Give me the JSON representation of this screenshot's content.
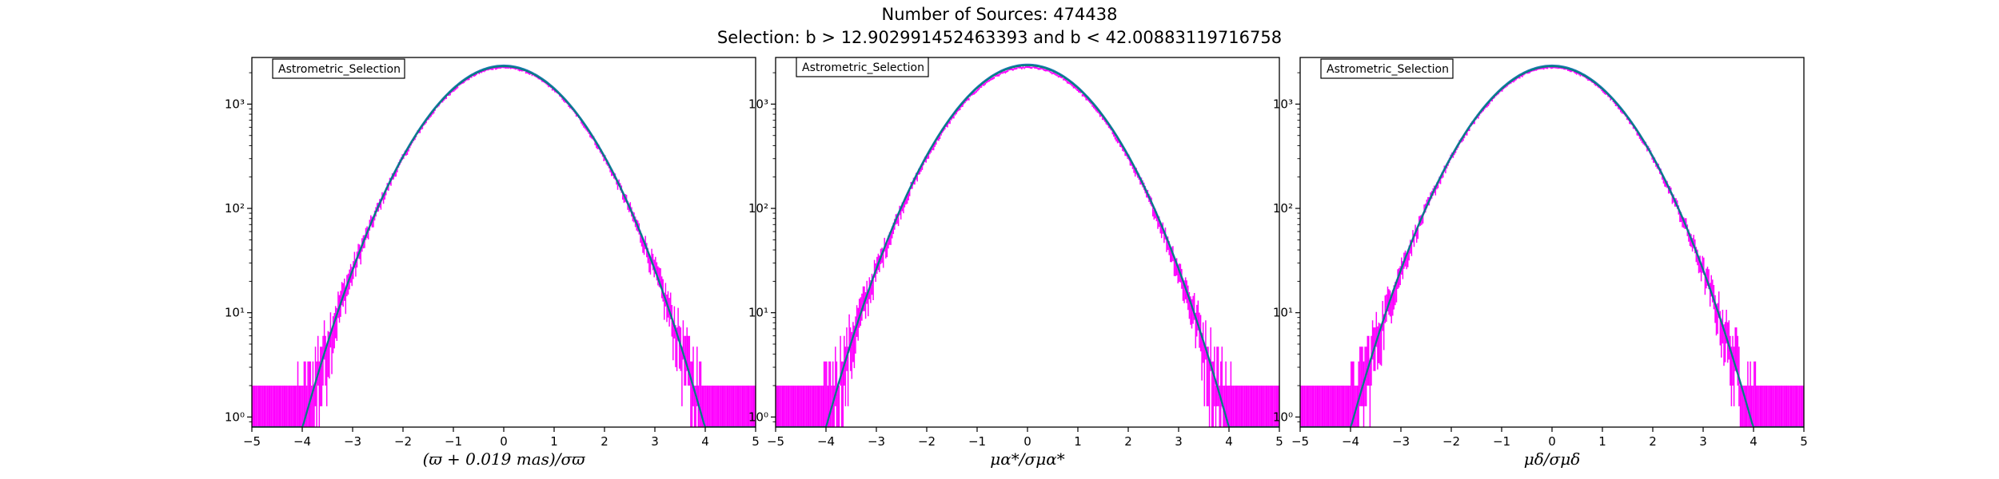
{
  "figure": {
    "title": "Number of Sources: 474438",
    "subtitle": "Selection: b > 12.902991452463393 and b < 42.00883119716758",
    "colors": {
      "histogram": "#ff00ff",
      "gaussian": "#1f77b4",
      "fit": "#008080",
      "frame": "#000000"
    }
  },
  "chart_data": [
    {
      "type": "line",
      "legend": "Astrometric_Selection",
      "legend_placement": "top-left",
      "xlabel": "(ϖ + 0.019 mas)/σϖ",
      "xlim": [
        -5,
        5
      ],
      "x_ticks": [
        "−5",
        "−4",
        "−3",
        "−2",
        "−1",
        "0",
        "1",
        "2",
        "3",
        "4",
        "5"
      ],
      "ylim": [
        0.8,
        2800
      ],
      "yscale": "log",
      "y_ticks": [
        "10⁰",
        "10¹",
        "10²",
        "10³"
      ],
      "grid": false,
      "series": [
        {
          "kind": "histogram-errorbars",
          "peak": 2250,
          "sigma": 1.0,
          "tail_floor": 1
        },
        {
          "kind": "gaussian-curve",
          "peak": 2350,
          "sigma": 1.0
        },
        {
          "kind": "gaussian-curve",
          "peak": 2300,
          "sigma": 1.0
        }
      ]
    },
    {
      "type": "line",
      "legend": "Astrometric_Selection",
      "legend_placement": "top-left",
      "xlabel": "μα*/σμα*",
      "xlim": [
        -5,
        5
      ],
      "x_ticks": [
        "−5",
        "−4",
        "−3",
        "−2",
        "−1",
        "0",
        "1",
        "2",
        "3",
        "4",
        "5"
      ],
      "ylim": [
        0.8,
        2800
      ],
      "yscale": "log",
      "y_ticks": [
        "10⁰",
        "10¹",
        "10²",
        "10³"
      ],
      "grid": false,
      "series": [
        {
          "kind": "histogram-errorbars",
          "peak": 2250,
          "sigma": 1.0,
          "tail_floor": 1
        },
        {
          "kind": "gaussian-curve",
          "peak": 2400,
          "sigma": 1.0
        },
        {
          "kind": "gaussian-curve",
          "peak": 2350,
          "sigma": 1.0
        }
      ]
    },
    {
      "type": "line",
      "legend": "Astrometric_Selection",
      "legend_placement": "top-left",
      "xlabel": "μδ/σμδ",
      "xlim": [
        -5,
        5
      ],
      "x_ticks": [
        "−5",
        "−4",
        "−3",
        "−2",
        "−1",
        "0",
        "1",
        "2",
        "3",
        "4",
        "5"
      ],
      "ylim": [
        0.8,
        2800
      ],
      "yscale": "log",
      "y_ticks": [
        "10⁰",
        "10¹",
        "10²",
        "10³"
      ],
      "grid": false,
      "series": [
        {
          "kind": "histogram-errorbars",
          "peak": 2250,
          "sigma": 1.0,
          "tail_floor": 1
        },
        {
          "kind": "gaussian-curve",
          "peak": 2350,
          "sigma": 1.0
        },
        {
          "kind": "gaussian-curve",
          "peak": 2300,
          "sigma": 1.0
        }
      ]
    }
  ]
}
